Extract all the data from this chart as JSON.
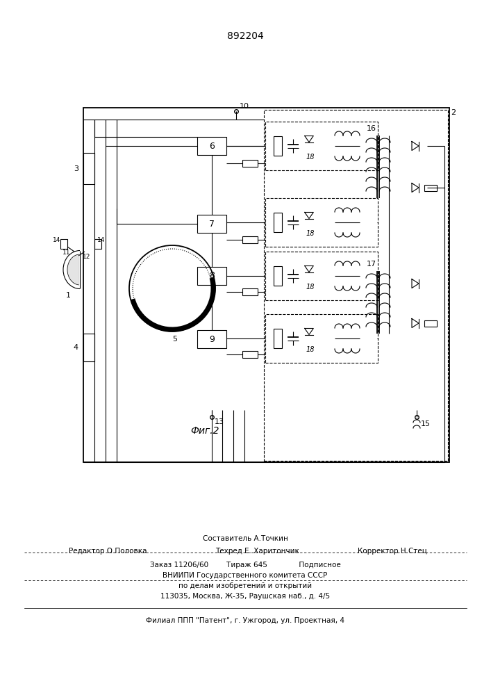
{
  "patent_number": "892204",
  "figure_label": "Фиг.2",
  "bg_color": "#ffffff",
  "line_color": "#000000",
  "footer_line1_center": "Составитель А.Точкин",
  "footer_line2_left": "Редактор О.Половка",
  "footer_line2_center": "Техред Е. Харитончик",
  "footer_line2_right": "Корректор Н.Стец",
  "footer_line3": "Заказ 11206/60        Тираж 645              Подписное",
  "footer_line4": "ВНИИПИ Государственного комитета СССР",
  "footer_line5": "по делам изобретений и открытий",
  "footer_line6": "113035, Москва, Ж-35, Раушская наб., д. 4/5",
  "footer_line7": "Филиал ППП \"Патент\", г. Ужгород, ул. Проектная, 4"
}
